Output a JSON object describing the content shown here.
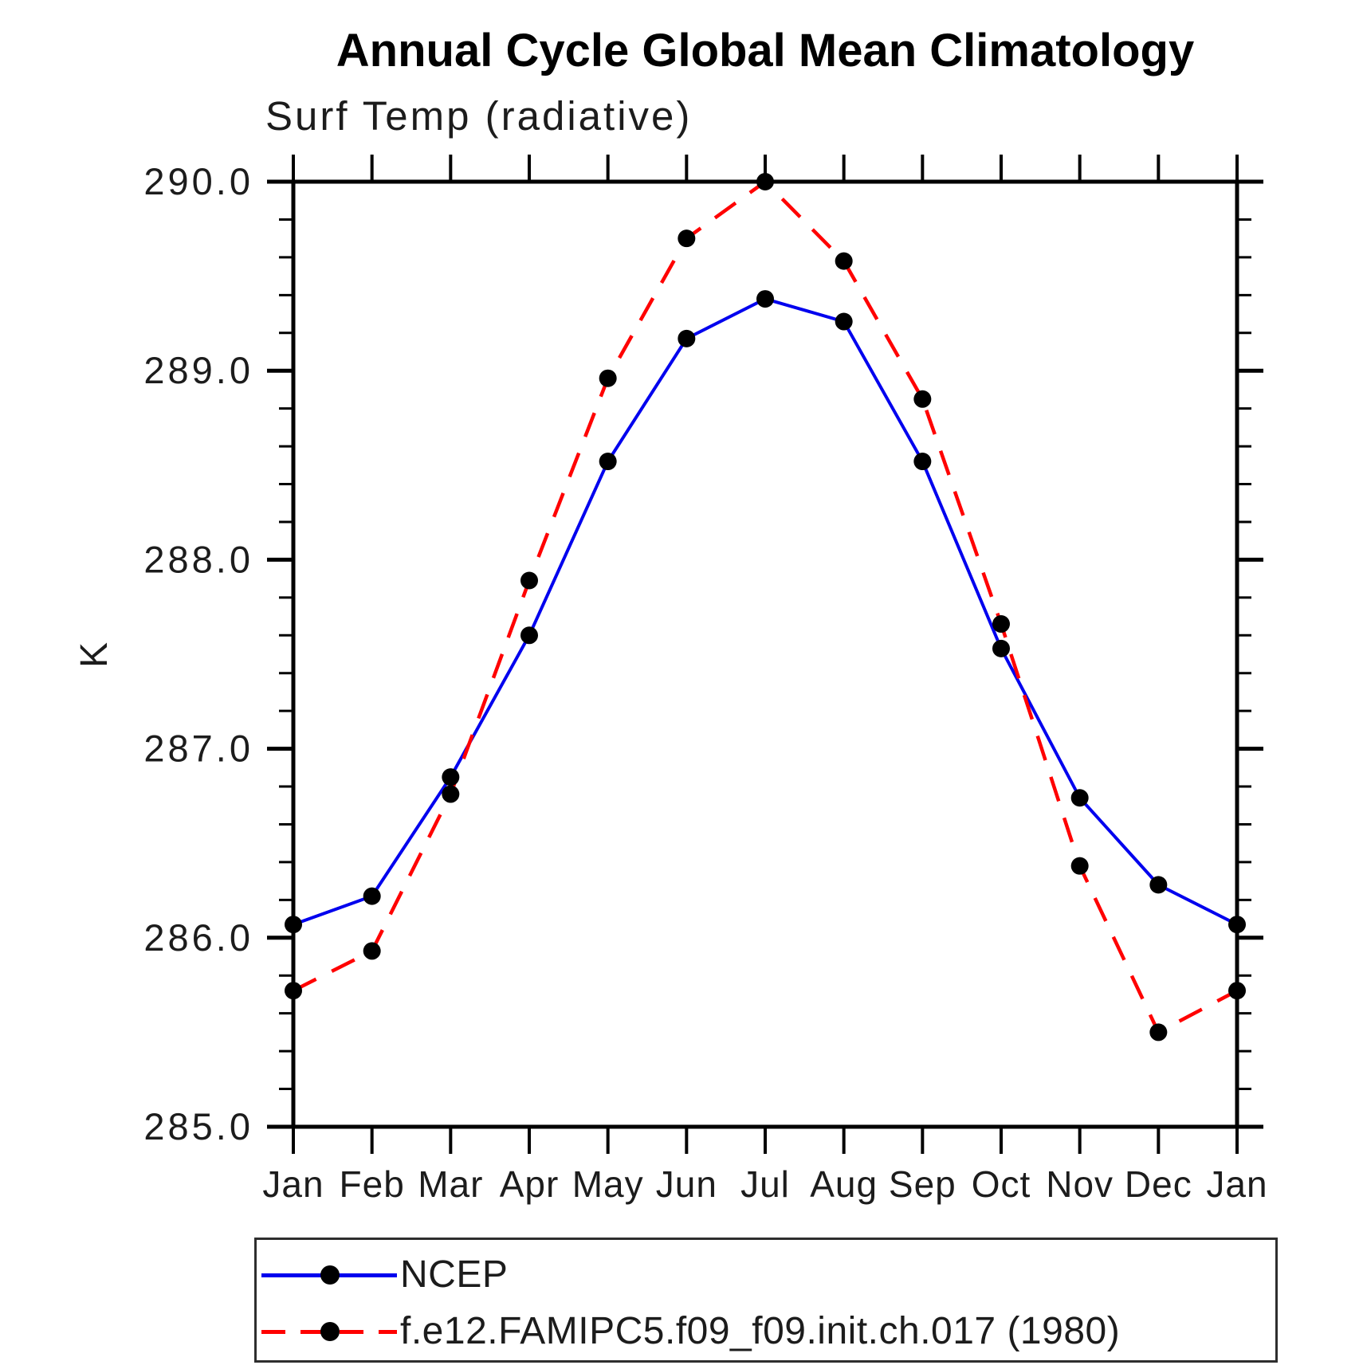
{
  "page": {
    "background": "#ffffff"
  },
  "chart_data": {
    "type": "line",
    "title": "Annual Cycle Global Mean Climatology",
    "subtitle": "Surf Temp (radiative)",
    "ylabel": "K",
    "xlabel": "",
    "x_labels": [
      "Jan",
      "Feb",
      "Mar",
      "Apr",
      "May",
      "Jun",
      "Jul",
      "Aug",
      "Sep",
      "Oct",
      "Nov",
      "Dec",
      "Jan"
    ],
    "ylim": [
      285.0,
      290.0
    ],
    "y_major_step": 1.0,
    "y_minor_step": 0.2,
    "y_tick_labels": [
      "285.0",
      "286.0",
      "287.0",
      "288.0",
      "289.0",
      "290.0"
    ],
    "grid": false,
    "axis_color": "#000000",
    "tick_style": "outward",
    "legend_position": "bottom-box",
    "series": [
      {
        "name": "NCEP",
        "color": "#0000ee",
        "line_style": "solid",
        "marker": "filled-circle",
        "marker_color": "#000000",
        "values": [
          286.07,
          286.22,
          286.85,
          287.6,
          288.52,
          289.17,
          289.38,
          289.26,
          288.52,
          287.53,
          286.74,
          286.28,
          286.07
        ]
      },
      {
        "name": "f.e12.FAMIPC5.f09_f09.init.ch.017 (1980)",
        "color": "#ff0000",
        "line_style": "dashed",
        "marker": "filled-circle",
        "marker_color": "#000000",
        "values": [
          285.72,
          285.93,
          286.76,
          287.89,
          288.96,
          289.7,
          290.0,
          289.58,
          288.85,
          287.66,
          286.38,
          285.5,
          285.72
        ]
      }
    ]
  }
}
